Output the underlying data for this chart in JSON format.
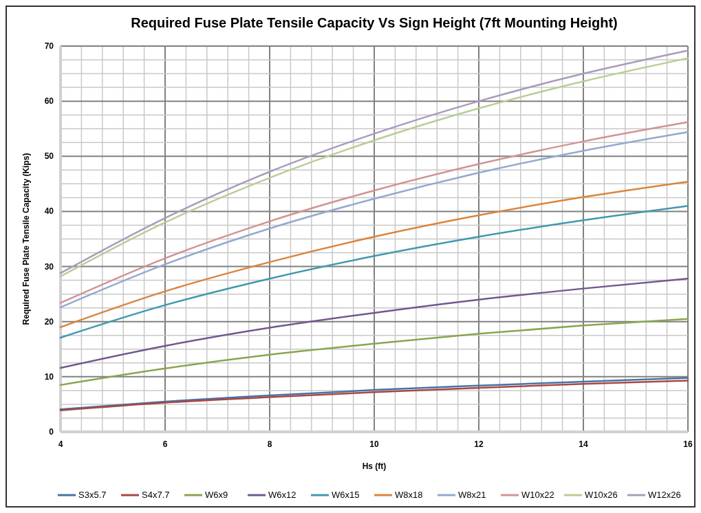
{
  "chart_data": {
    "type": "line",
    "title": "Required Fuse Plate Tensile Capacity Vs Sign Height (7ft Mounting Height)",
    "xlabel": "Hs (ft)",
    "ylabel": "Required Fuse Plate Tensile Capacity (Kips)",
    "x": [
      4,
      6,
      8,
      10,
      12,
      14,
      16
    ],
    "xlim": [
      4,
      16
    ],
    "xticks": [
      4,
      {
        "value": 4.4,
        "label": null
      },
      {
        "value": 4.8,
        "label": null
      },
      {
        "value": 5.2,
        "label": null
      },
      {
        "value": 5.6,
        "label": null
      },
      6,
      {
        "value": 6.4,
        "label": null
      },
      {
        "value": 6.8,
        "label": null
      },
      {
        "value": 7.2,
        "label": null
      },
      {
        "value": 7.6,
        "label": null
      },
      8,
      {
        "value": 8.4,
        "label": null
      },
      {
        "value": 8.8,
        "label": null
      },
      {
        "value": 9.2,
        "label": null
      },
      {
        "value": 9.6,
        "label": null
      },
      10,
      {
        "value": 10.4,
        "label": null
      },
      {
        "value": 10.8,
        "label": null
      },
      {
        "value": 11.2,
        "label": null
      },
      {
        "value": 11.6,
        "label": null
      },
      12,
      {
        "value": 12.4,
        "label": null
      },
      {
        "value": 12.8,
        "label": null
      },
      {
        "value": 13.2,
        "label": null
      },
      {
        "value": 13.6,
        "label": null
      },
      14,
      {
        "value": 14.4,
        "label": null
      },
      {
        "value": 14.8,
        "label": null
      },
      {
        "value": 15.2,
        "label": null
      },
      {
        "value": 15.6,
        "label": null
      },
      16
    ],
    "ylim": [
      0,
      70
    ],
    "yticks": [
      0,
      {
        "value": 2.5,
        "label": null
      },
      {
        "value": 5,
        "label": null
      },
      {
        "value": 7.5,
        "label": null
      },
      10,
      {
        "value": 12.5,
        "label": null
      },
      {
        "value": 15,
        "label": null
      },
      {
        "value": 17.5,
        "label": null
      },
      20,
      {
        "value": 22.5,
        "label": null
      },
      {
        "value": 25,
        "label": null
      },
      {
        "value": 27.5,
        "label": null
      },
      30,
      {
        "value": 32.5,
        "label": null
      },
      {
        "value": 35,
        "label": null
      },
      {
        "value": 37.5,
        "label": null
      },
      40,
      {
        "value": 42.5,
        "label": null
      },
      {
        "value": 45,
        "label": null
      },
      {
        "value": 47.5,
        "label": null
      },
      50,
      {
        "value": 52.5,
        "label": null
      },
      {
        "value": 55,
        "label": null
      },
      {
        "value": 57.5,
        "label": null
      },
      60,
      {
        "value": 62.5,
        "label": null
      },
      {
        "value": 65,
        "label": null
      },
      {
        "value": 67.5,
        "label": null
      },
      70
    ],
    "grid": true,
    "legend": "bottom",
    "marker": "none",
    "line_style": "solid",
    "series": [
      {
        "name": "S3x5.7",
        "color": "#4572a7",
        "values": [
          4.1,
          5.5,
          6.6,
          7.6,
          8.4,
          9.1,
          9.8
        ]
      },
      {
        "name": "S4x7.7",
        "color": "#aa4643",
        "values": [
          3.9,
          5.3,
          6.3,
          7.2,
          8.0,
          8.7,
          9.3
        ]
      },
      {
        "name": "W6x9",
        "color": "#89a54e",
        "values": [
          8.5,
          11.5,
          14.0,
          16.0,
          17.8,
          19.3,
          20.5
        ]
      },
      {
        "name": "W6x12",
        "color": "#71588f",
        "values": [
          11.6,
          15.6,
          18.9,
          21.6,
          24.0,
          26.0,
          27.8
        ]
      },
      {
        "name": "W6x15",
        "color": "#4198af",
        "values": [
          17.1,
          23.0,
          27.8,
          31.9,
          35.4,
          38.4,
          41.0
        ]
      },
      {
        "name": "W8x18",
        "color": "#db843d",
        "values": [
          19.0,
          25.5,
          30.8,
          35.4,
          39.3,
          42.6,
          45.4
        ]
      },
      {
        "name": "W8x21",
        "color": "#93a9cf",
        "values": [
          22.6,
          30.4,
          36.9,
          42.3,
          47.0,
          51.0,
          54.4
        ]
      },
      {
        "name": "W10x22",
        "color": "#d19392",
        "values": [
          23.4,
          31.5,
          38.2,
          43.8,
          48.6,
          52.7,
          56.2
        ]
      },
      {
        "name": "W10x26",
        "color": "#b9cd96",
        "values": [
          28.2,
          38.0,
          46.1,
          52.9,
          58.7,
          63.6,
          67.8
        ]
      },
      {
        "name": "W12x26",
        "color": "#a99bbd",
        "values": [
          28.8,
          38.8,
          47.2,
          54.1,
          60.0,
          65.0,
          69.2
        ]
      }
    ]
  }
}
